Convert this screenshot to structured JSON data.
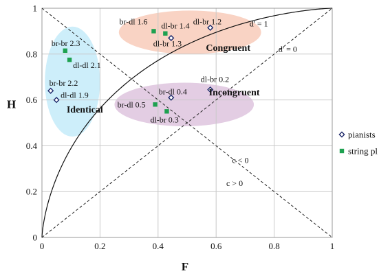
{
  "chart_data": {
    "type": "scatter",
    "xlabel": "F",
    "ylabel": "H",
    "xlim": [
      0,
      1
    ],
    "ylim": [
      0,
      1
    ],
    "grid": true,
    "x_ticks": [
      "0",
      "0.2",
      "0.4",
      "0.6",
      "0.8",
      "1"
    ],
    "y_ticks": [
      "0",
      "0.2",
      "0.4",
      "0.6",
      "0.8",
      "1"
    ],
    "legend_position": "right",
    "series": [
      {
        "name": "pianists",
        "marker": "diamond-open",
        "color": "#1f2a6b",
        "points": [
          {
            "label": "dl-br 1.2",
            "x": 0.58,
            "y": 0.915
          },
          {
            "label": "dl-br 1.3",
            "x": 0.445,
            "y": 0.87
          },
          {
            "label": "dl-br 0.2",
            "x": 0.58,
            "y": 0.645
          },
          {
            "label": "br-dl 0.4",
            "x": 0.445,
            "y": 0.61
          },
          {
            "label": "br-br 2.2",
            "x": 0.03,
            "y": 0.64
          },
          {
            "label": "dl-dl 1.9",
            "x": 0.05,
            "y": 0.6
          }
        ]
      },
      {
        "name": "string pl",
        "marker": "square-filled",
        "color": "#1ea150",
        "points": [
          {
            "label": "br-dl 1.6",
            "x": 0.385,
            "y": 0.9
          },
          {
            "label": "dl-br 1.4",
            "x": 0.425,
            "y": 0.89
          },
          {
            "label": "br-br 2.3",
            "x": 0.08,
            "y": 0.815
          },
          {
            "label": "dl-dl 2.1",
            "x": 0.095,
            "y": 0.775
          },
          {
            "label": "br-dl 0.5",
            "x": 0.39,
            "y": 0.58
          },
          {
            "label": "dl-br 0.3",
            "x": 0.43,
            "y": 0.55
          }
        ]
      }
    ],
    "groups": [
      {
        "label": "Identical",
        "color": "#cdeefa"
      },
      {
        "label": "Congruent",
        "color": "#f9d3c4"
      },
      {
        "label": "Incongruent",
        "color": "#e3cde3"
      }
    ],
    "reference_lines": [
      {
        "label": "d' = 1",
        "style": "solid"
      },
      {
        "label": "d' = 0",
        "style": "dashed"
      },
      {
        "label": "c < 0",
        "style": "text"
      },
      {
        "label": "c > 0",
        "style": "text"
      }
    ]
  }
}
